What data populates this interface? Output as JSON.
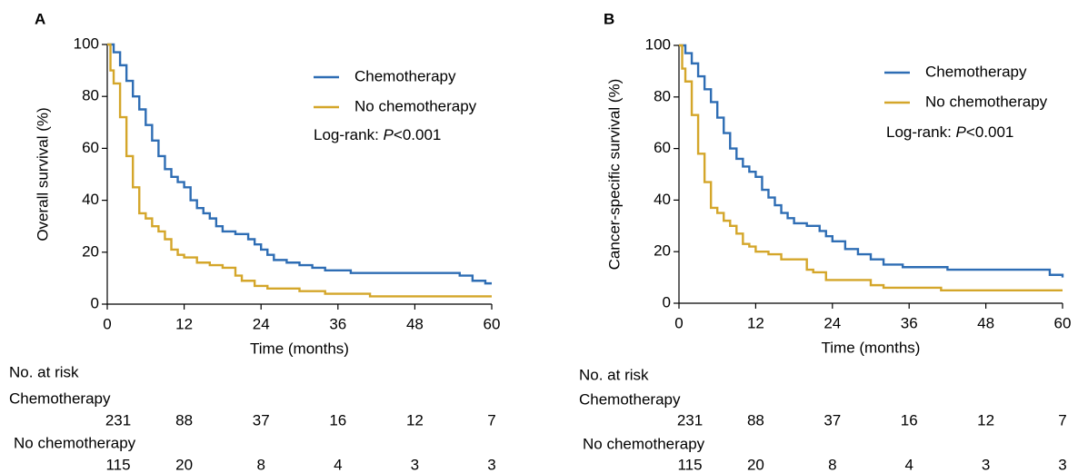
{
  "chart_data": [
    {
      "type": "line",
      "step": "post",
      "label": "A",
      "ylabel": "Overall survival (%)",
      "xlabel": "Time (months)",
      "xlim": [
        0,
        60
      ],
      "xticks": [
        0,
        12,
        24,
        36,
        48,
        60
      ],
      "ylim": [
        0,
        100
      ],
      "yticks": [
        0,
        20,
        40,
        60,
        80,
        100
      ],
      "annotation": [
        "Log-rank: ",
        "P",
        "<0.001"
      ],
      "series": [
        {
          "name": "Chemotherapy",
          "color": "#2e6db4",
          "x": [
            0,
            1,
            2,
            3,
            4,
            5,
            6,
            7,
            8,
            9,
            10,
            11,
            12,
            13,
            14,
            15,
            16,
            17,
            18,
            20,
            22,
            23,
            24,
            25,
            26,
            28,
            30,
            32,
            34,
            38,
            55,
            57,
            59,
            60
          ],
          "values": [
            100,
            97,
            92,
            86,
            80,
            75,
            69,
            63,
            57,
            52,
            49,
            47,
            45,
            40,
            37,
            35,
            33,
            30,
            28,
            27,
            25,
            23,
            21,
            19,
            17,
            16,
            15,
            14,
            13,
            12,
            11,
            9,
            8,
            8
          ]
        },
        {
          "name": "No chemotherapy",
          "color": "#d4a62a",
          "x": [
            0,
            0.5,
            1,
            2,
            3,
            4,
            5,
            6,
            7,
            8,
            9,
            10,
            11,
            12,
            14,
            16,
            18,
            20,
            21,
            23,
            25,
            30,
            34,
            41,
            60
          ],
          "values": [
            100,
            90,
            85,
            72,
            57,
            45,
            35,
            33,
            30,
            28,
            25,
            21,
            19,
            18,
            16,
            15,
            14,
            11,
            9,
            7,
            6,
            5,
            4,
            3,
            3
          ]
        }
      ],
      "risk_table": {
        "title": "No. at risk",
        "rows": [
          {
            "name": "Chemotherapy",
            "values": [
              231,
              88,
              37,
              16,
              12,
              7
            ]
          },
          {
            "name": "No chemotherapy",
            "values": [
              115,
              20,
              8,
              4,
              3,
              3
            ]
          }
        ]
      }
    },
    {
      "type": "line",
      "step": "post",
      "label": "B",
      "ylabel": "Cancer-specific survival (%)",
      "xlabel": "Time (months)",
      "xlim": [
        0,
        60
      ],
      "xticks": [
        0,
        12,
        24,
        36,
        48,
        60
      ],
      "ylim": [
        0,
        100
      ],
      "yticks": [
        0,
        20,
        40,
        60,
        80,
        100
      ],
      "annotation": [
        "Log-rank: ",
        "P",
        "<0.001"
      ],
      "series": [
        {
          "name": "Chemotherapy",
          "color": "#2e6db4",
          "x": [
            0,
            1,
            2,
            3,
            4,
            5,
            6,
            7,
            8,
            9,
            10,
            11,
            12,
            13,
            14,
            15,
            16,
            17,
            18,
            20,
            22,
            23,
            24,
            26,
            28,
            30,
            32,
            35,
            42,
            58,
            60
          ],
          "values": [
            100,
            97,
            93,
            88,
            83,
            78,
            72,
            66,
            60,
            56,
            53,
            51,
            49,
            44,
            41,
            38,
            35,
            33,
            31,
            30,
            28,
            26,
            24,
            21,
            19,
            17,
            15,
            14,
            13,
            11,
            10
          ]
        },
        {
          "name": "No chemotherapy",
          "color": "#d4a62a",
          "x": [
            0,
            0.5,
            1,
            2,
            3,
            4,
            5,
            6,
            7,
            8,
            9,
            10,
            11,
            12,
            14,
            16,
            20,
            21,
            23,
            30,
            32,
            41,
            60
          ],
          "values": [
            100,
            91,
            86,
            73,
            58,
            47,
            37,
            35,
            32,
            30,
            27,
            23,
            22,
            20,
            19,
            17,
            13,
            12,
            9,
            7,
            6,
            5,
            5
          ]
        }
      ],
      "risk_table": {
        "title": "No. at risk",
        "rows": [
          {
            "name": "Chemotherapy",
            "values": [
              231,
              88,
              37,
              16,
              12,
              7
            ]
          },
          {
            "name": "No chemotherapy",
            "values": [
              115,
              20,
              8,
              4,
              3,
              3
            ]
          }
        ]
      }
    }
  ]
}
